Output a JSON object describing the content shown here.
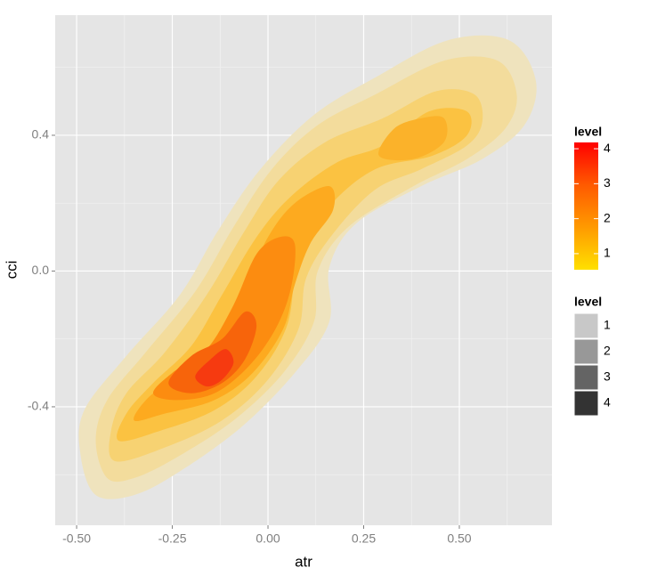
{
  "chart_data": {
    "type": "density2d",
    "x_label": "atr",
    "y_label": "cci",
    "xlim": [
      -0.556,
      0.742
    ],
    "ylim": [
      -0.749,
      0.754
    ],
    "xticks": [
      {
        "value": -0.5,
        "label": "-0.50"
      },
      {
        "value": -0.25,
        "label": "-0.25"
      },
      {
        "value": 0,
        "label": "0.00"
      },
      {
        "value": 0.25,
        "label": "0.25"
      },
      {
        "value": 0.5,
        "label": "0.50"
      }
    ],
    "yticks": [
      -0.4,
      {
        "value": 0,
        "label": "0.0"
      },
      0.4
    ],
    "x_minor_grid": [
      -0.375,
      -0.125,
      0.125,
      0.375,
      0.625
    ],
    "y_minor_grid": [
      -0.6,
      -0.2,
      0.2,
      0.6
    ],
    "grid": true,
    "contours": [
      {
        "color": "#efe3bd",
        "x": [
          -0.45,
          -0.49,
          -0.48,
          -0.37,
          -0.23,
          -0.13,
          -0.02,
          0.12,
          0.28,
          0.47,
          0.63,
          0.7,
          0.67,
          0.56,
          0.4,
          0.23,
          0.16,
          0.16,
          0.07,
          -0.07,
          -0.23,
          -0.35
        ],
        "y": [
          -0.66,
          -0.54,
          -0.41,
          -0.25,
          -0.07,
          0.12,
          0.3,
          0.46,
          0.57,
          0.68,
          0.68,
          0.56,
          0.43,
          0.33,
          0.25,
          0.14,
          0.01,
          -0.15,
          -0.3,
          -0.46,
          -0.59,
          -0.66
        ]
      },
      {
        "color": "#f3dc9c",
        "x": [
          -0.42,
          -0.45,
          -0.42,
          -0.32,
          -0.19,
          -0.09,
          0.01,
          0.13,
          0.28,
          0.46,
          0.6,
          0.65,
          0.62,
          0.52,
          0.38,
          0.21,
          0.13,
          0.12,
          0.04,
          -0.09,
          -0.24,
          -0.35
        ],
        "y": [
          -0.61,
          -0.5,
          -0.38,
          -0.24,
          -0.06,
          0.13,
          0.3,
          0.43,
          0.52,
          0.62,
          0.62,
          0.52,
          0.42,
          0.33,
          0.25,
          0.13,
          0.0,
          -0.15,
          -0.3,
          -0.44,
          -0.55,
          -0.61
        ]
      },
      {
        "color": "#f7d272",
        "x": [
          -0.4,
          -0.41,
          -0.37,
          -0.27,
          -0.16,
          -0.06,
          0.03,
          0.15,
          0.3,
          0.44,
          0.54,
          0.56,
          0.52,
          0.4,
          0.28,
          0.17,
          0.1,
          0.08,
          0.0,
          -0.12,
          -0.27
        ],
        "y": [
          -0.56,
          -0.47,
          -0.36,
          -0.24,
          -0.07,
          0.12,
          0.27,
          0.38,
          0.45,
          0.53,
          0.52,
          0.44,
          0.37,
          0.3,
          0.24,
          0.11,
          -0.02,
          -0.17,
          -0.32,
          -0.44,
          -0.52
        ]
      },
      {
        "color": "#fbc241",
        "x": [
          -0.39,
          -0.37,
          -0.3,
          -0.2,
          -0.12,
          -0.03,
          0.06,
          0.18,
          0.3,
          0.42,
          0.52,
          0.52,
          0.43,
          0.28,
          0.16,
          0.08,
          0.05,
          -0.03,
          -0.14,
          -0.28
        ],
        "y": [
          -0.5,
          -0.42,
          -0.33,
          -0.22,
          -0.07,
          0.1,
          0.22,
          0.32,
          0.37,
          0.47,
          0.47,
          0.4,
          0.34,
          0.3,
          0.19,
          0.04,
          -0.16,
          -0.31,
          -0.41,
          -0.47
        ]
      },
      {
        "color": "#fdaa1f",
        "x": [
          -0.35,
          -0.31,
          -0.22,
          -0.13,
          -0.06,
          0.0,
          0.07,
          0.16,
          0.17,
          0.11,
          0.07,
          0.04,
          -0.04,
          -0.14,
          -0.27
        ],
        "y": [
          -0.44,
          -0.37,
          -0.3,
          -0.19,
          -0.05,
          0.1,
          0.2,
          0.25,
          0.18,
          0.08,
          -0.04,
          -0.17,
          -0.3,
          -0.38,
          -0.42
        ]
      },
      {
        "color": "#fbb22a",
        "x": [
          0.29,
          0.33,
          0.4,
          0.46,
          0.46,
          0.38
        ],
        "y": [
          0.34,
          0.42,
          0.45,
          0.45,
          0.38,
          0.33
        ]
      },
      {
        "color": "#fc8c10",
        "x": [
          -0.3,
          -0.25,
          -0.16,
          -0.09,
          -0.03,
          0.03,
          0.07,
          0.06,
          0.02,
          -0.05,
          -0.14,
          -0.24
        ],
        "y": [
          -0.36,
          -0.3,
          -0.23,
          -0.1,
          0.05,
          0.1,
          0.08,
          -0.05,
          -0.17,
          -0.28,
          -0.36,
          -0.38
        ]
      },
      {
        "color": "#f7640b",
        "x": [
          -0.26,
          -0.2,
          -0.12,
          -0.06,
          -0.03,
          -0.06,
          -0.12,
          -0.2
        ],
        "y": [
          -0.33,
          -0.25,
          -0.2,
          -0.12,
          -0.16,
          -0.26,
          -0.33,
          -0.36
        ]
      },
      {
        "color": "#f63a10",
        "x": [
          -0.19,
          -0.15,
          -0.11,
          -0.09,
          -0.12,
          -0.16
        ],
        "y": [
          -0.31,
          -0.26,
          -0.23,
          -0.27,
          -0.32,
          -0.34
        ]
      }
    ],
    "colorbar": {
      "title": "level",
      "lim": [
        0.54,
        4.18
      ],
      "ticks": [
        1,
        2,
        3,
        4
      ],
      "colors": [
        "#ffe000",
        "#ff9a00",
        "#ff5a00",
        "#ff0000"
      ]
    },
    "alpha_legend": {
      "title": "level",
      "labels": [
        "1",
        "2",
        "3",
        "4"
      ],
      "colors": [
        "#c8c8c8",
        "#989898",
        "#646464",
        "#333333"
      ]
    }
  }
}
